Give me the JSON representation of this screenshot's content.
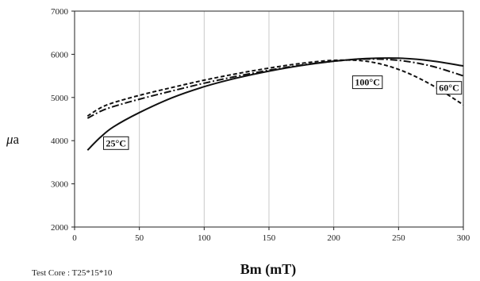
{
  "chart_data": {
    "type": "line",
    "xlabel": "Bm (mT)",
    "ylabel_symbol": "μ",
    "ylabel_sub": "a",
    "xlim": [
      0,
      300
    ],
    "ylim": [
      2000,
      7000
    ],
    "x_ticks": [
      "0",
      "50",
      "100",
      "150",
      "200",
      "250",
      "300"
    ],
    "y_ticks": [
      "2000",
      "3000",
      "4000",
      "5000",
      "6000",
      "7000"
    ],
    "grid": "vertical",
    "series": [
      {
        "name": "25°C",
        "style": "solid",
        "x": [
          10,
          20,
          30,
          50,
          75,
          100,
          125,
          150,
          175,
          200,
          225,
          250,
          275,
          300
        ],
        "y": [
          3780,
          4080,
          4320,
          4650,
          4990,
          5250,
          5450,
          5610,
          5740,
          5840,
          5900,
          5910,
          5850,
          5730
        ]
      },
      {
        "name": "60°C",
        "style": "dashdot",
        "x": [
          10,
          20,
          30,
          50,
          75,
          100,
          125,
          150,
          175,
          200,
          225,
          250,
          275,
          300
        ],
        "y": [
          4520,
          4680,
          4790,
          4960,
          5150,
          5330,
          5490,
          5630,
          5750,
          5840,
          5890,
          5860,
          5730,
          5500
        ]
      },
      {
        "name": "100°C",
        "style": "dashed",
        "x": [
          10,
          20,
          30,
          50,
          75,
          100,
          125,
          150,
          175,
          200,
          225,
          250,
          275,
          300
        ],
        "y": [
          4570,
          4760,
          4880,
          5050,
          5230,
          5400,
          5550,
          5680,
          5790,
          5860,
          5840,
          5650,
          5300,
          4830
        ]
      }
    ],
    "annotations": [
      {
        "text": "25°C",
        "x": 32,
        "y": 3920
      },
      {
        "text": "100°C",
        "x": 226,
        "y": 5330
      },
      {
        "text": "60°C",
        "x": 289,
        "y": 5200
      }
    ],
    "footnote": "Test Core : T25*15*10"
  }
}
